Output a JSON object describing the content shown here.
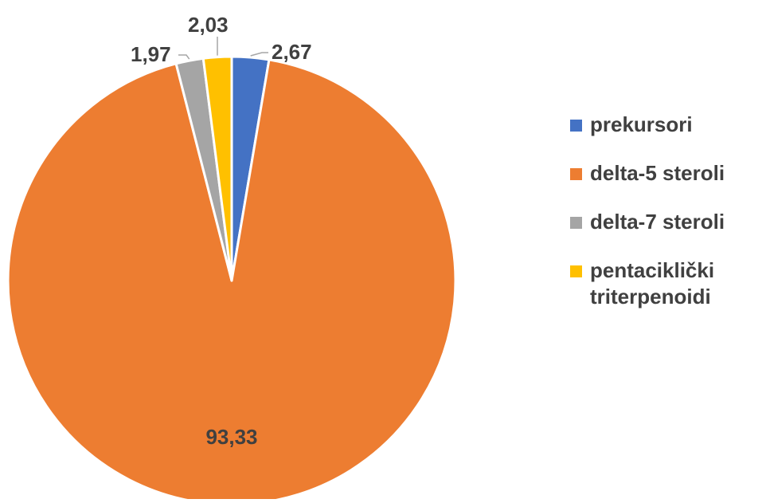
{
  "chart_data": {
    "type": "pie",
    "title": "",
    "slices": [
      {
        "label": "prekursori",
        "value": 2.67,
        "value_label": "2,67",
        "color": "#4472C4"
      },
      {
        "label": "delta-5 steroli",
        "value": 93.33,
        "value_label": "93,33",
        "color": "#ED7D31"
      },
      {
        "label": "delta-7 steroli",
        "value": 1.97,
        "value_label": "1,97",
        "color": "#A5A5A5"
      },
      {
        "label": "pentaciklički triterpenoidi",
        "value": 2.03,
        "value_label": "2,03",
        "color": "#FFC000"
      }
    ],
    "legend_position": "right",
    "data_labels": true,
    "leader_lines": true
  }
}
